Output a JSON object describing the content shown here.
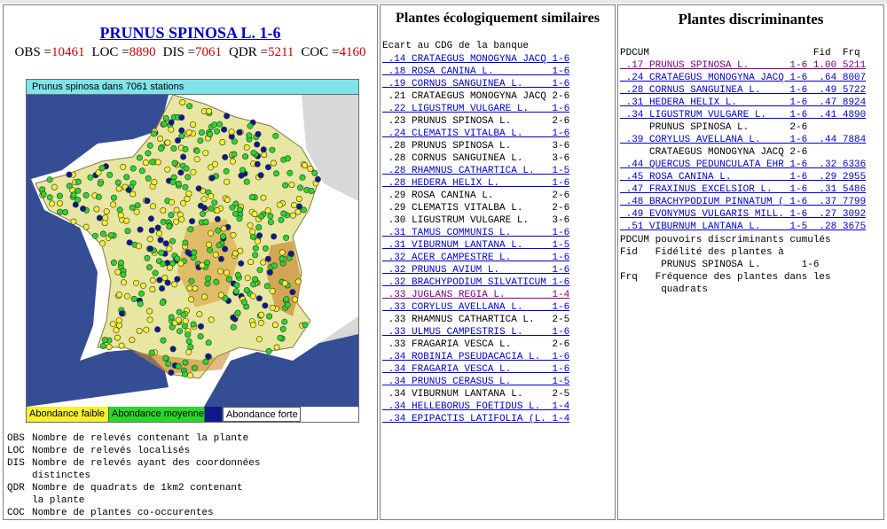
{
  "species_title": "PRUNUS SPINOSA L. 1-6",
  "stats": [
    {
      "key": "OBS",
      "value": "10461"
    },
    {
      "key": "LOC",
      "value": "8890"
    },
    {
      "key": "DIS",
      "value": "7061"
    },
    {
      "key": "QDR",
      "value": "5211"
    },
    {
      "key": "COC",
      "value": "4160"
    }
  ],
  "map": {
    "caption": "Prunus spinosa dans 7061 stations",
    "legend": {
      "low": "Abondance faible",
      "medium": "Abondance moyenne",
      "high": "Abondance forte"
    },
    "colors": {
      "low": "#f5f12e",
      "medium": "#2bd62b",
      "high": "#0b1a8c",
      "sea": "#1f3a8a",
      "land": "#e8e6a3"
    }
  },
  "definitions": [
    {
      "key": "OBS",
      "lines": [
        "Nombre de relevés contenant la plante"
      ]
    },
    {
      "key": "LOC",
      "lines": [
        "Nombre de relevés localisés"
      ]
    },
    {
      "key": "DIS",
      "lines": [
        "Nombre de relevés ayant des coordonnées",
        "distinctes"
      ]
    },
    {
      "key": "QDR",
      "lines": [
        "Nombre de quadrats de 1km2 contenant",
        "la plante"
      ]
    },
    {
      "key": "COC",
      "lines": [
        "Nombre de plantes co-occurentes"
      ]
    }
  ],
  "similar": {
    "title": "Plantes écologiquement similaires",
    "subtitle": "Ecart au CDG de la banque",
    "items": [
      {
        "score": ".14",
        "name": "CRATAEGUS MONOGYNA JACQ",
        "range": "1-6",
        "style": "link"
      },
      {
        "score": ".18",
        "name": "ROSA CANINA L.",
        "range": "1-6",
        "style": "link"
      },
      {
        "score": ".19",
        "name": "CORNUS SANGUINEA L.",
        "range": "1-6",
        "style": "link"
      },
      {
        "score": ".21",
        "name": "CRATAEGUS MONOGYNA JACQ",
        "range": "2-6",
        "style": "plain"
      },
      {
        "score": ".22",
        "name": "LIGUSTRUM VULGARE L.",
        "range": "1-6",
        "style": "link"
      },
      {
        "score": ".23",
        "name": "PRUNUS SPINOSA L.",
        "range": "2-6",
        "style": "plain"
      },
      {
        "score": ".24",
        "name": "CLEMATIS VITALBA L.",
        "range": "1-6",
        "style": "link"
      },
      {
        "score": ".28",
        "name": "PRUNUS SPINOSA L.",
        "range": "3-6",
        "style": "plain"
      },
      {
        "score": ".28",
        "name": "CORNUS SANGUINEA L.",
        "range": "3-6",
        "style": "plain"
      },
      {
        "score": ".28",
        "name": "RHAMNUS CATHARTICA L.",
        "range": "1-5",
        "style": "link"
      },
      {
        "score": ".28",
        "name": "HEDERA HELIX L.",
        "range": "1-6",
        "style": "link"
      },
      {
        "score": ".29",
        "name": "ROSA CANINA L.",
        "range": "2-6",
        "style": "plain"
      },
      {
        "score": ".29",
        "name": "CLEMATIS VITALBA L.",
        "range": "2-6",
        "style": "plain"
      },
      {
        "score": ".30",
        "name": "LIGUSTRUM VULGARE L.",
        "range": "3-6",
        "style": "plain"
      },
      {
        "score": ".31",
        "name": "TAMUS COMMUNIS L.",
        "range": "1-6",
        "style": "link"
      },
      {
        "score": ".31",
        "name": "VIBURNUM LANTANA L.",
        "range": "1-5",
        "style": "link"
      },
      {
        "score": ".32",
        "name": "ACER CAMPESTRE L.",
        "range": "1-6",
        "style": "link"
      },
      {
        "score": ".32",
        "name": "PRUNUS AVIUM L.",
        "range": "1-6",
        "style": "link"
      },
      {
        "score": ".32",
        "name": "BRACHYPODIUM SILVATICUM",
        "range": "1-6",
        "style": "link"
      },
      {
        "score": ".33",
        "name": "JUGLANS REGIA L.",
        "range": "1-4",
        "style": "visited"
      },
      {
        "score": ".33",
        "name": "CORYLUS AVELLANA L.",
        "range": "1-6",
        "style": "link"
      },
      {
        "score": ".33",
        "name": "RHAMNUS CATHARTICA L.",
        "range": "2-5",
        "style": "plain"
      },
      {
        "score": ".33",
        "name": "ULMUS CAMPESTRIS L.",
        "range": "1-6",
        "style": "link"
      },
      {
        "score": ".33",
        "name": "FRAGARIA VESCA L.",
        "range": "2-6",
        "style": "plain"
      },
      {
        "score": ".34",
        "name": "ROBINIA PSEUDACACIA L.",
        "range": "1-6",
        "style": "link"
      },
      {
        "score": ".34",
        "name": "FRAGARIA VESCA L.",
        "range": "1-6",
        "style": "link"
      },
      {
        "score": ".34",
        "name": "PRUNUS CERASUS L.",
        "range": "1-5",
        "style": "link"
      },
      {
        "score": ".34",
        "name": "VIBURNUM LANTANA L.",
        "range": "2-5",
        "style": "plain"
      },
      {
        "score": ".34",
        "name": "HELLEBORUS FOETIDUS L.",
        "range": "1-4",
        "style": "link"
      },
      {
        "score": ".34",
        "name": "EPIPACTIS LATIFOLIA (L.",
        "range": "1-4",
        "style": "link"
      }
    ]
  },
  "discriminant": {
    "title": "Plantes discriminantes",
    "header": {
      "pdcum": "PDCUM",
      "fid": "Fid",
      "frq": "Frq"
    },
    "items": [
      {
        "pdcum": ".17",
        "name": "PRUNUS SPINOSA L.",
        "range": "1-6",
        "fid": "1.00",
        "frq": "5211",
        "style": "visited"
      },
      {
        "pdcum": ".24",
        "name": "CRATAEGUS MONOGYNA JACQ",
        "range": "1-6",
        "fid": ".64",
        "frq": "8007",
        "style": "link"
      },
      {
        "pdcum": ".28",
        "name": "CORNUS SANGUINEA L.",
        "range": "1-6",
        "fid": ".49",
        "frq": "5722",
        "style": "link"
      },
      {
        "pdcum": ".31",
        "name": "HEDERA HELIX L.",
        "range": "1-6",
        "fid": ".47",
        "frq": "8924",
        "style": "link"
      },
      {
        "pdcum": ".34",
        "name": "LIGUSTRUM VULGARE L.",
        "range": "1-6",
        "fid": ".41",
        "frq": "4890",
        "style": "link"
      },
      {
        "pdcum": "",
        "name": "PRUNUS SPINOSA L.",
        "range": "2-6",
        "fid": "",
        "frq": "",
        "style": "plain"
      },
      {
        "pdcum": ".39",
        "name": "CORYLUS AVELLANA L.",
        "range": "1-6",
        "fid": ".44",
        "frq": "7884",
        "style": "link"
      },
      {
        "pdcum": "",
        "name": "CRATAEGUS MONOGYNA JACQ",
        "range": "2-6",
        "fid": "",
        "frq": "",
        "style": "plain"
      },
      {
        "pdcum": ".44",
        "name": "QUERCUS PEDUNCULATA EHR",
        "range": "1-6",
        "fid": ".32",
        "frq": "6336",
        "style": "link"
      },
      {
        "pdcum": ".45",
        "name": "ROSA CANINA L.",
        "range": "1-6",
        "fid": ".29",
        "frq": "2955",
        "style": "link"
      },
      {
        "pdcum": ".47",
        "name": "FRAXINUS EXCELSIOR L.",
        "range": "1-6",
        "fid": ".31",
        "frq": "5486",
        "style": "link"
      },
      {
        "pdcum": ".48",
        "name": "BRACHYPODIUM PINNATUM (",
        "range": "1-6",
        "fid": ".37",
        "frq": "7799",
        "style": "link"
      },
      {
        "pdcum": ".49",
        "name": "EVONYMUS VULGARIS MILL.",
        "range": "1-6",
        "fid": ".27",
        "frq": "3092",
        "style": "link"
      },
      {
        "pdcum": ".51",
        "name": "VIBURNUM LANTANA L.",
        "range": "1-5",
        "fid": ".28",
        "frq": "3675",
        "style": "link"
      }
    ],
    "definitions": [
      {
        "key": "PDCUM",
        "text": "pouvoirs discriminants cumulés"
      },
      {
        "key": "Fid",
        "text": "Fidélité des plantes à"
      },
      {
        "key": "",
        "text": "PRUNUS SPINOSA L.       1-6"
      },
      {
        "key": "Frq",
        "text": "Fréquence des plantes dans les"
      },
      {
        "key": "",
        "text": "quadrats"
      }
    ]
  }
}
